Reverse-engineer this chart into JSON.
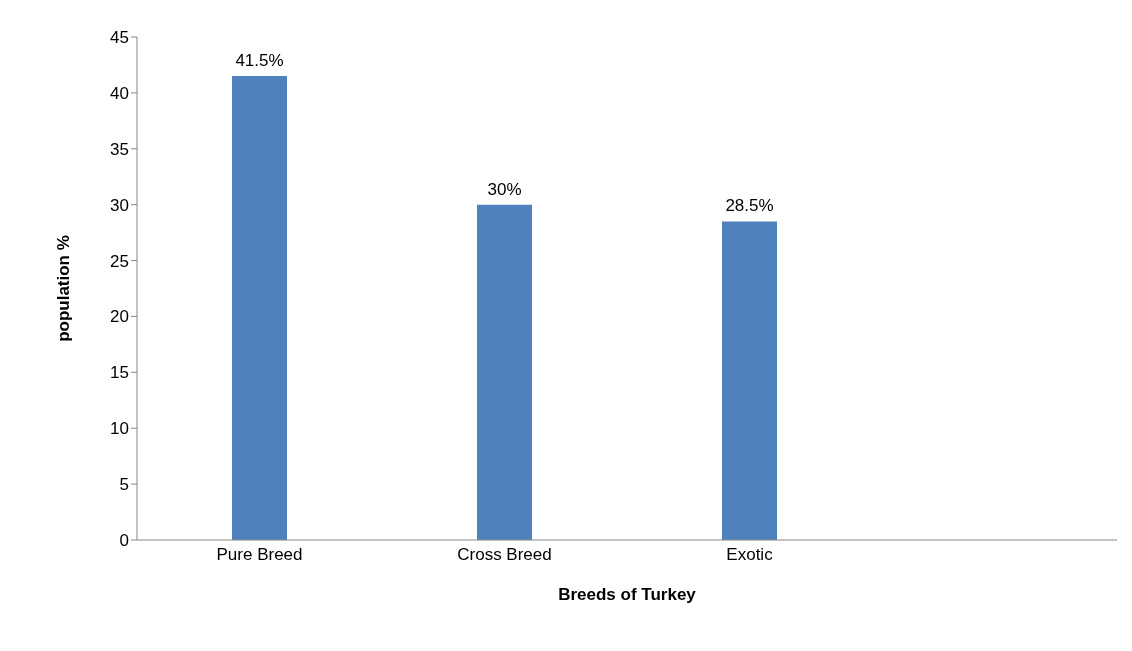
{
  "chart_data": {
    "type": "bar",
    "xlabel": "Breeds of Turkey",
    "ylabel": "population %",
    "categories": [
      "Pure Breed",
      "Cross Breed",
      "Exotic",
      null
    ],
    "values": [
      41.5,
      30,
      28.5,
      null
    ],
    "value_labels": [
      "41.5%",
      "30%",
      "28.5%",
      null
    ],
    "color": "#4f81bd",
    "ylim": [
      0,
      45
    ],
    "yticks": [
      0,
      5,
      10,
      15,
      20,
      25,
      30,
      35,
      40,
      45
    ],
    "grid": false,
    "legend": false
  }
}
